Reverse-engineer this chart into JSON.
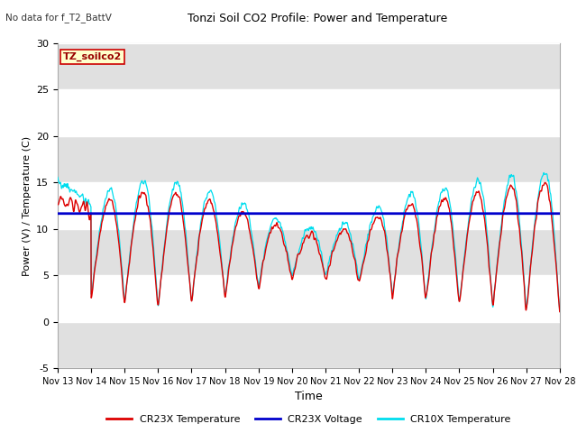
{
  "title": "Tonzi Soil CO2 Profile: Power and Temperature",
  "subtitle": "No data for f_T2_BattV",
  "ylabel": "Power (V) / Temperature (C)",
  "xlabel": "Time",
  "ylim": [
    -5,
    30
  ],
  "yticks": [
    -5,
    0,
    5,
    10,
    15,
    20,
    25,
    30
  ],
  "xtick_labels": [
    "Nov 13",
    "Nov 14",
    "Nov 15",
    "Nov 16",
    "Nov 17",
    "Nov 18",
    "Nov 19",
    "Nov 20",
    "Nov 21",
    "Nov 22",
    "Nov 23",
    "Nov 24",
    "Nov 25",
    "Nov 26",
    "Nov 27",
    "Nov 28"
  ],
  "voltage_value": 11.65,
  "legend_labels": [
    "CR23X Temperature",
    "CR23X Voltage",
    "CR10X Temperature"
  ],
  "cr23x_color": "#dd0000",
  "cr10x_color": "#00ddee",
  "voltage_color": "#0000cc",
  "plot_bg": "#ffffff",
  "fig_bg": "#ffffff",
  "band_color": "#e0e0e0",
  "grid_color": "#cccccc",
  "annotation_text": "TZ_soilco2",
  "annotation_bg": "#ffffcc",
  "annotation_border": "#cc0000",
  "annotation_text_color": "#990000"
}
